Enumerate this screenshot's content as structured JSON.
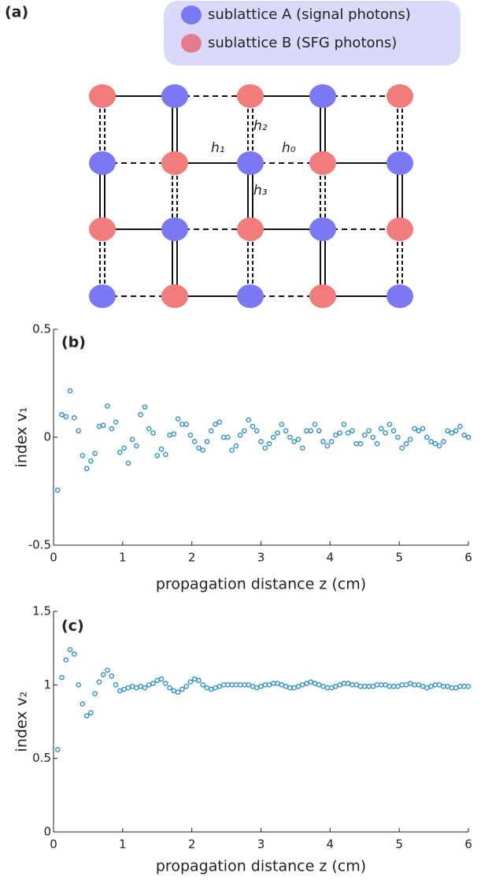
{
  "panel_a": {
    "label": "(a)",
    "legend": [
      "sublattice A (signal photons)",
      "sublattice B (SFG photons)"
    ],
    "bond_labels": [
      "h₂",
      "h₁",
      "h₀",
      "h₃"
    ]
  },
  "chart_data": [
    {
      "type": "scatter",
      "panel_label": "(b)",
      "xlabel": "propagation distance z (cm)",
      "ylabel": "index v₁",
      "xlim": [
        0,
        6
      ],
      "xticks": [
        0,
        1,
        2,
        3,
        4,
        5,
        6
      ],
      "ylim": [
        -0.5,
        0.5
      ],
      "yticks": [
        -0.5,
        0,
        0.5
      ],
      "color": "#2e8fd0",
      "x": [
        0.06,
        0.12,
        0.18,
        0.24,
        0.3,
        0.36,
        0.42,
        0.48,
        0.54,
        0.6,
        0.66,
        0.72,
        0.78,
        0.84,
        0.9,
        0.96,
        1.02,
        1.08,
        1.14,
        1.2,
        1.26,
        1.32,
        1.38,
        1.44,
        1.5,
        1.56,
        1.62,
        1.68,
        1.74,
        1.8,
        1.86,
        1.92,
        1.98,
        2.04,
        2.1,
        2.16,
        2.22,
        2.28,
        2.34,
        2.4,
        2.46,
        2.52,
        2.58,
        2.64,
        2.7,
        2.76,
        2.82,
        2.88,
        2.94,
        3.0,
        3.06,
        3.12,
        3.18,
        3.24,
        3.3,
        3.36,
        3.42,
        3.48,
        3.54,
        3.6,
        3.66,
        3.72,
        3.78,
        3.84,
        3.9,
        3.96,
        4.02,
        4.08,
        4.14,
        4.2,
        4.26,
        4.32,
        4.38,
        4.44,
        4.5,
        4.56,
        4.62,
        4.68,
        4.74,
        4.8,
        4.86,
        4.92,
        4.98,
        5.04,
        5.1,
        5.16,
        5.22,
        5.28,
        5.34,
        5.4,
        5.46,
        5.52,
        5.58,
        5.64,
        5.7,
        5.76,
        5.82,
        5.88,
        5.94,
        6.0
      ],
      "values": [
        -0.245,
        0.105,
        0.095,
        0.215,
        0.09,
        0.03,
        -0.085,
        -0.145,
        -0.11,
        -0.075,
        0.05,
        0.055,
        0.145,
        0.04,
        0.07,
        -0.07,
        -0.05,
        -0.12,
        -0.01,
        -0.04,
        0.105,
        0.14,
        0.04,
        0.02,
        -0.085,
        -0.055,
        -0.08,
        0.01,
        0.015,
        0.085,
        0.06,
        0.06,
        0.01,
        -0.02,
        -0.05,
        -0.06,
        -0.02,
        0.03,
        0.06,
        0.07,
        0.0,
        0.0,
        -0.06,
        -0.04,
        0.01,
        0.03,
        0.08,
        0.05,
        0.03,
        -0.02,
        -0.05,
        -0.03,
        0.0,
        0.02,
        0.06,
        0.03,
        0.0,
        -0.02,
        -0.01,
        -0.05,
        0.03,
        0.03,
        0.06,
        0.03,
        -0.02,
        -0.04,
        -0.02,
        0.01,
        0.02,
        0.06,
        0.02,
        0.03,
        -0.03,
        -0.03,
        0.01,
        0.03,
        0.0,
        -0.03,
        0.04,
        0.02,
        0.06,
        0.03,
        0.0,
        -0.05,
        -0.03,
        -0.01,
        0.04,
        0.03,
        0.04,
        0.0,
        -0.02,
        -0.03,
        -0.04,
        -0.02,
        0.03,
        0.02,
        0.03,
        0.05,
        0.01,
        0.0
      ]
    },
    {
      "type": "scatter",
      "panel_label": "(c)",
      "xlabel": "propagation distance z (cm)",
      "ylabel": "index v₂",
      "xlim": [
        0,
        6
      ],
      "xticks": [
        0,
        1,
        2,
        3,
        4,
        5,
        6
      ],
      "ylim": [
        0,
        1.5
      ],
      "yticks": [
        0,
        0.5,
        1,
        1.5
      ],
      "color": "#2e8fd0",
      "x": [
        0.06,
        0.12,
        0.18,
        0.24,
        0.3,
        0.36,
        0.42,
        0.48,
        0.54,
        0.6,
        0.66,
        0.72,
        0.78,
        0.84,
        0.9,
        0.96,
        1.02,
        1.08,
        1.14,
        1.2,
        1.26,
        1.32,
        1.38,
        1.44,
        1.5,
        1.56,
        1.62,
        1.68,
        1.74,
        1.8,
        1.86,
        1.92,
        1.98,
        2.04,
        2.1,
        2.16,
        2.22,
        2.28,
        2.34,
        2.4,
        2.46,
        2.52,
        2.58,
        2.64,
        2.7,
        2.76,
        2.82,
        2.88,
        2.94,
        3.0,
        3.06,
        3.12,
        3.18,
        3.24,
        3.3,
        3.36,
        3.42,
        3.48,
        3.54,
        3.6,
        3.66,
        3.72,
        3.78,
        3.84,
        3.9,
        3.96,
        4.02,
        4.08,
        4.14,
        4.2,
        4.26,
        4.32,
        4.38,
        4.44,
        4.5,
        4.56,
        4.62,
        4.68,
        4.74,
        4.8,
        4.86,
        4.92,
        4.98,
        5.04,
        5.1,
        5.16,
        5.22,
        5.28,
        5.34,
        5.4,
        5.46,
        5.52,
        5.58,
        5.64,
        5.7,
        5.76,
        5.82,
        5.88,
        5.94,
        6.0
      ],
      "values": [
        0.56,
        1.05,
        1.17,
        1.24,
        1.21,
        1.0,
        0.87,
        0.79,
        0.81,
        0.94,
        1.02,
        1.07,
        1.1,
        1.06,
        1.0,
        0.96,
        0.97,
        0.98,
        0.99,
        0.98,
        0.99,
        0.98,
        1.0,
        1.01,
        1.03,
        1.04,
        1.01,
        0.98,
        0.96,
        0.95,
        0.97,
        0.99,
        1.02,
        1.04,
        1.03,
        1.0,
        0.98,
        0.97,
        0.98,
        0.99,
        1.0,
        1.0,
        1.0,
        1.0,
        1.0,
        1.0,
        1.0,
        0.99,
        0.98,
        0.99,
        1.0,
        1.0,
        1.01,
        1.01,
        1.0,
        0.99,
        0.98,
        0.98,
        0.99,
        1.0,
        1.01,
        1.02,
        1.01,
        1.0,
        0.99,
        0.98,
        0.98,
        0.99,
        1.0,
        1.01,
        1.01,
        1.0,
        1.0,
        0.99,
        0.99,
        0.99,
        0.99,
        1.0,
        1.0,
        1.0,
        0.99,
        0.99,
        0.99,
        1.0,
        1.0,
        1.01,
        1.0,
        1.0,
        0.99,
        0.98,
        0.99,
        1.0,
        1.0,
        0.99,
        0.99,
        0.98,
        0.98,
        0.99,
        0.99,
        0.99
      ]
    }
  ]
}
